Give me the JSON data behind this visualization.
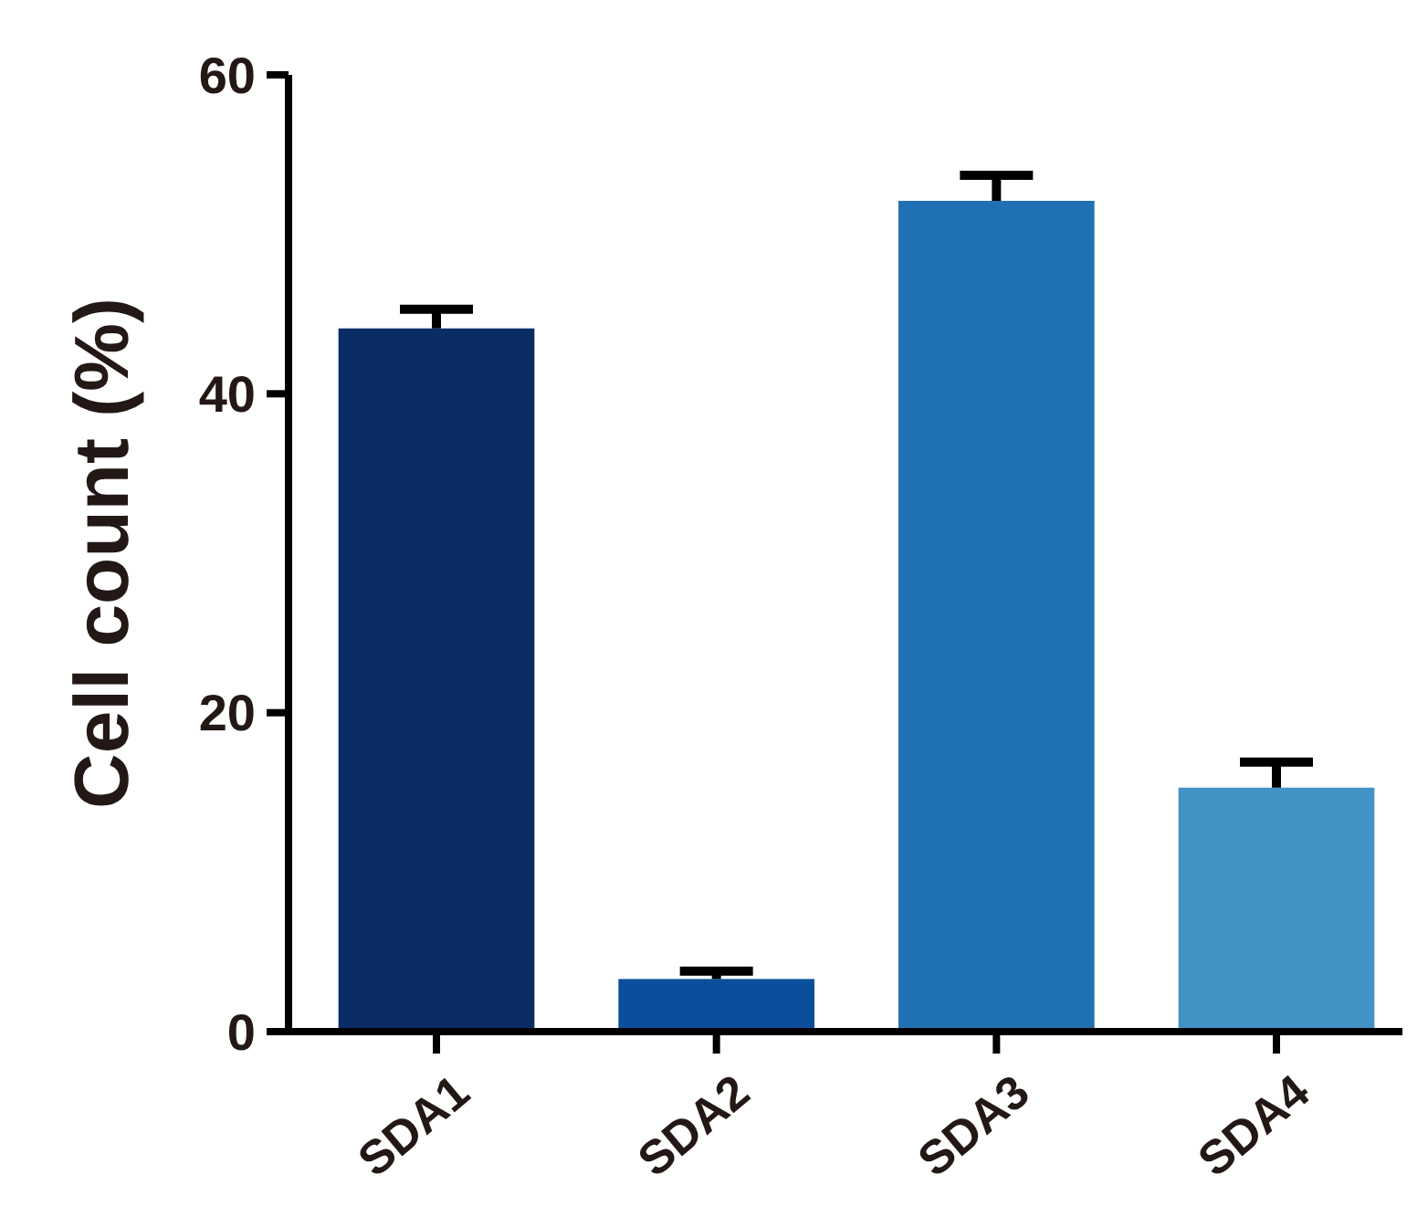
{
  "chart_data": {
    "type": "bar",
    "ylabel": "Cell count (%)",
    "categories": [
      "SDA1",
      "SDA2",
      "SDA3",
      "SDA4"
    ],
    "values": [
      44.1,
      3.3,
      52.1,
      15.3
    ],
    "colors": [
      "#0a2d66",
      "#0b4f9c",
      "#2070b4",
      "#4292c6"
    ],
    "errors": [
      [
        44.1,
        45.3
      ],
      [
        3.3,
        3.8
      ],
      [
        52.1,
        53.7
      ],
      [
        15.3,
        16.9
      ]
    ],
    "ylim": [
      0,
      60
    ],
    "yticks": [
      0,
      20,
      40,
      60
    ],
    "grid": false
  }
}
